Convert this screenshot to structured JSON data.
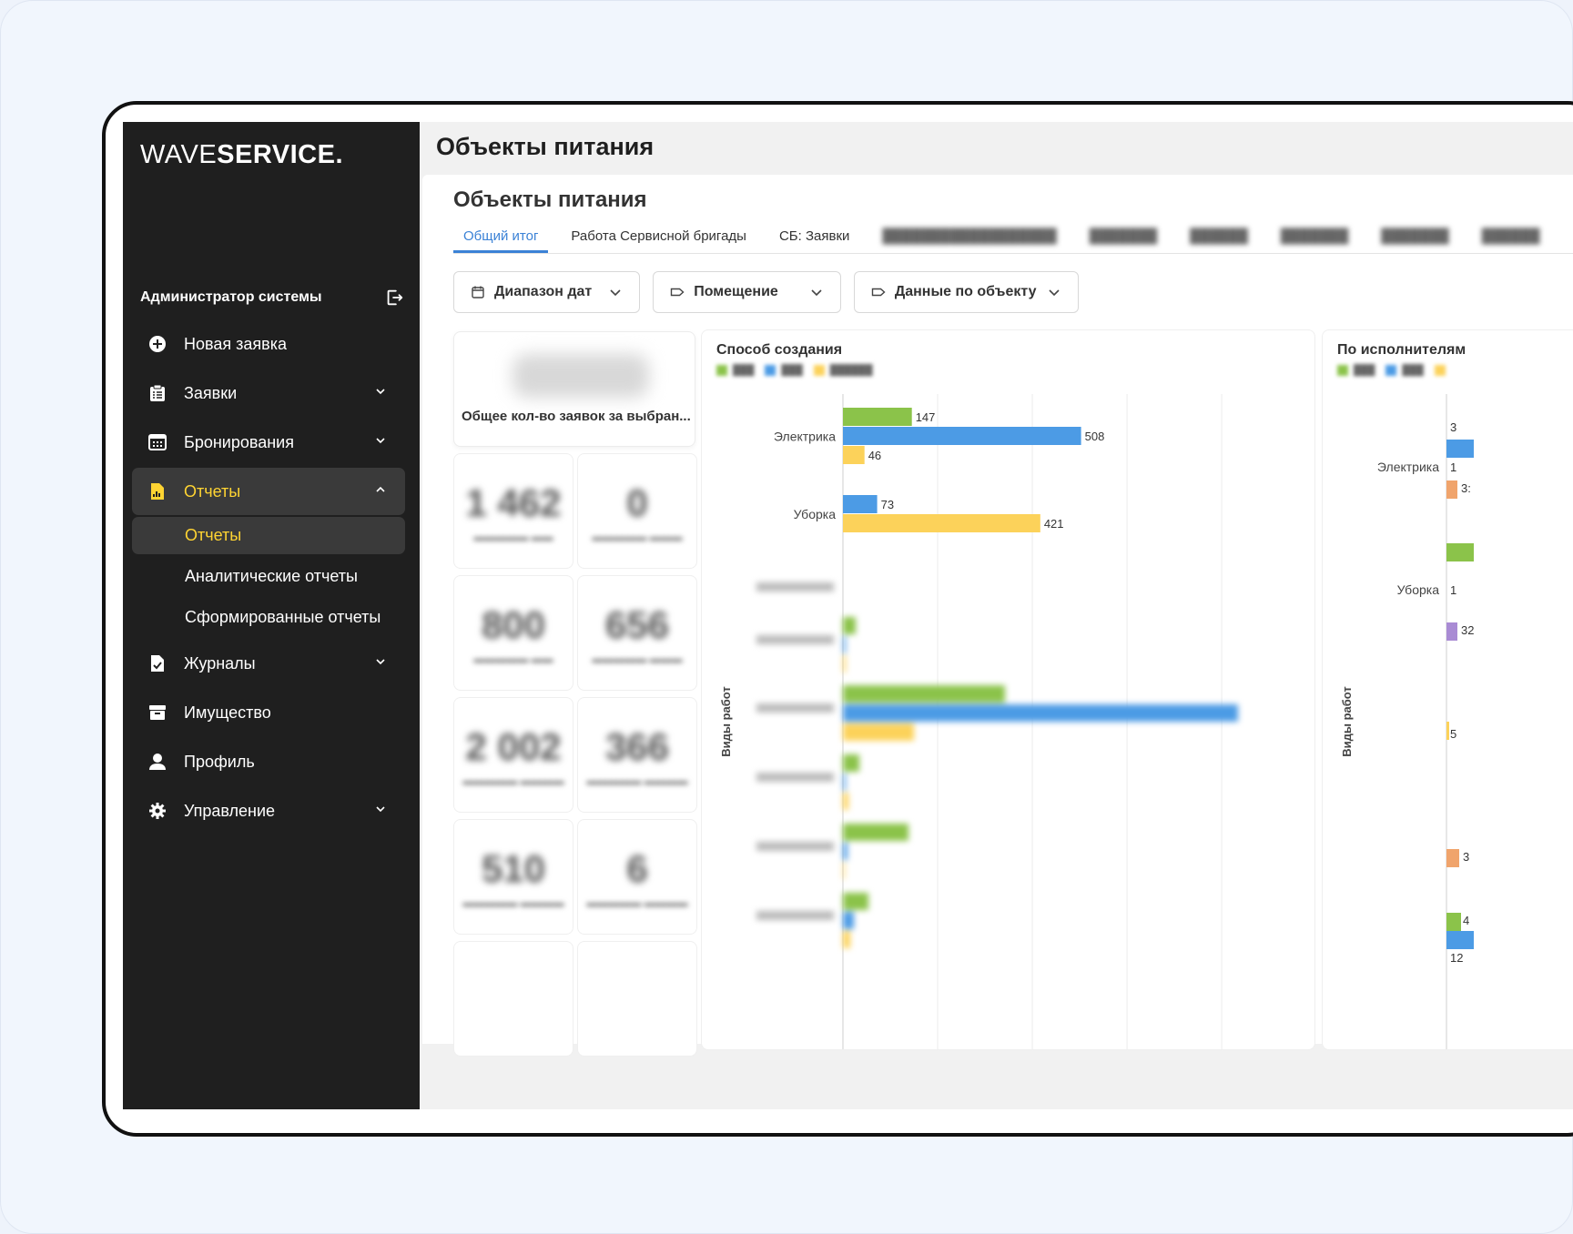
{
  "app": {
    "logo_thin": "WAVE",
    "logo_bold": "SERVICE."
  },
  "user": {
    "name": "Администратор системы"
  },
  "nav": {
    "new_request": "Новая заявка",
    "requests": "Заявки",
    "bookings": "Бронирования",
    "reports": "Отчеты",
    "journals": "Журналы",
    "property": "Имущество",
    "profile": "Профиль",
    "management": "Управление",
    "sub": {
      "reports": "Отчеты",
      "analytic": "Аналитические отчеты",
      "generated": "Сформированные отчеты"
    }
  },
  "header": {
    "title": "Объекты питания"
  },
  "page": {
    "heading": "Объекты питания"
  },
  "tabs": [
    {
      "label": "Общий итог"
    },
    {
      "label": "Работа Сервисной бригады"
    },
    {
      "label": "СБ: Заявки"
    }
  ],
  "filters": {
    "dates": "Диапазон дат",
    "room": "Помещение",
    "object": "Данные по объекту"
  },
  "stats": {
    "total_label": "Общее кол-во заявок за выбран...",
    "cards": [
      {
        "value": "1 462"
      },
      {
        "value": "0"
      },
      {
        "value": "800"
      },
      {
        "value": "656"
      },
      {
        "value": "2 002"
      },
      {
        "value": "366"
      },
      {
        "value": "510"
      },
      {
        "value": "6"
      }
    ]
  },
  "colors": {
    "green": "#8bc34a",
    "blue": "#4c9be5",
    "yellow": "#fcd25a",
    "orange": "#f0a46c",
    "purple": "#a98bd4"
  },
  "chart_data": [
    {
      "type": "bar",
      "orientation": "horizontal",
      "title": "Способ создания",
      "ylabel": "Виды работ",
      "categories": [
        "Электрика",
        "Уборка"
      ],
      "series": [
        {
          "name": "series-1",
          "color": "#8bc34a",
          "values": [
            147,
            null
          ]
        },
        {
          "name": "series-2",
          "color": "#4c9be5",
          "values": [
            508,
            73
          ]
        },
        {
          "name": "series-3",
          "color": "#fcd25a",
          "values": [
            46,
            421
          ]
        }
      ]
    },
    {
      "type": "bar",
      "orientation": "horizontal",
      "title": "По исполнителям",
      "ylabel": "Виды работ",
      "categories": [
        "Электрика",
        "Уборка"
      ],
      "visible_labels": [
        "3",
        "1",
        "3:",
        "1",
        "32",
        "5",
        "3",
        "4",
        "12"
      ]
    }
  ]
}
